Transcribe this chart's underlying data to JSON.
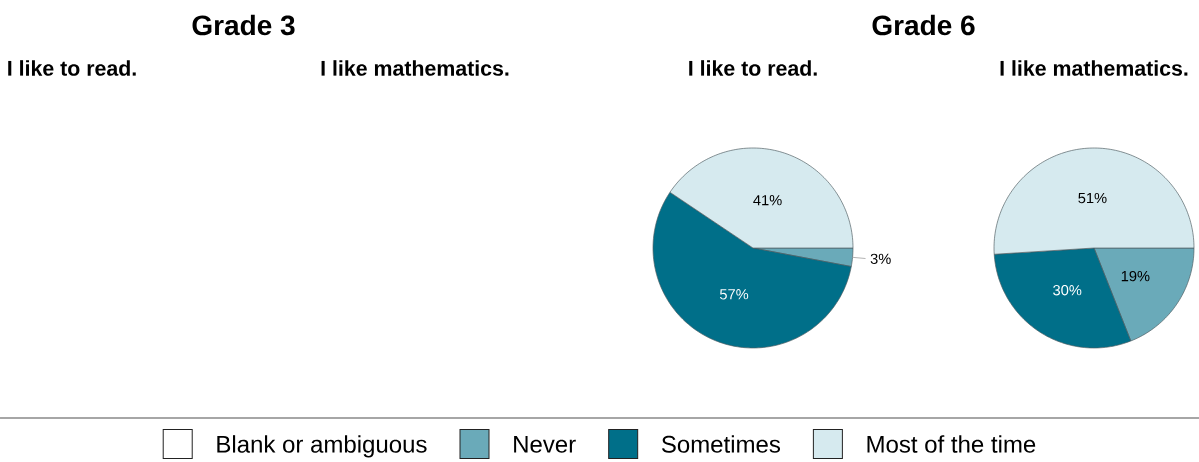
{
  "chart_data": [
    {
      "type": "other",
      "title": "Grade 3",
      "subtitle": "I like to read."
    },
    {
      "type": "other",
      "subtitle": "I like mathematics."
    },
    {
      "type": "pie",
      "title": "Grade 6",
      "subtitle": "I like to read.",
      "categories": [
        null,
        null,
        null,
        null
      ],
      "values": [
        null,
        3,
        57,
        41
      ],
      "value_labels": [
        null,
        "3%",
        "57%",
        "41%"
      ],
      "colors": [
        null,
        "#6aaab9",
        "#006f89",
        "#d6eaef"
      ]
    },
    {
      "type": "pie",
      "subtitle": "I like mathematics.",
      "categories": [
        "Blank or ambiguous",
        "Never",
        "Sometimes",
        "Most of the time"
      ],
      "values": [
        null,
        19,
        30,
        51
      ],
      "value_labels": [
        null,
        "19%",
        "30%",
        "51%"
      ],
      "colors": [
        "#ffffff",
        "#6aaab9",
        "#006f89",
        "#d6eaef"
      ],
      "legend": "bottom"
    }
  ]
}
